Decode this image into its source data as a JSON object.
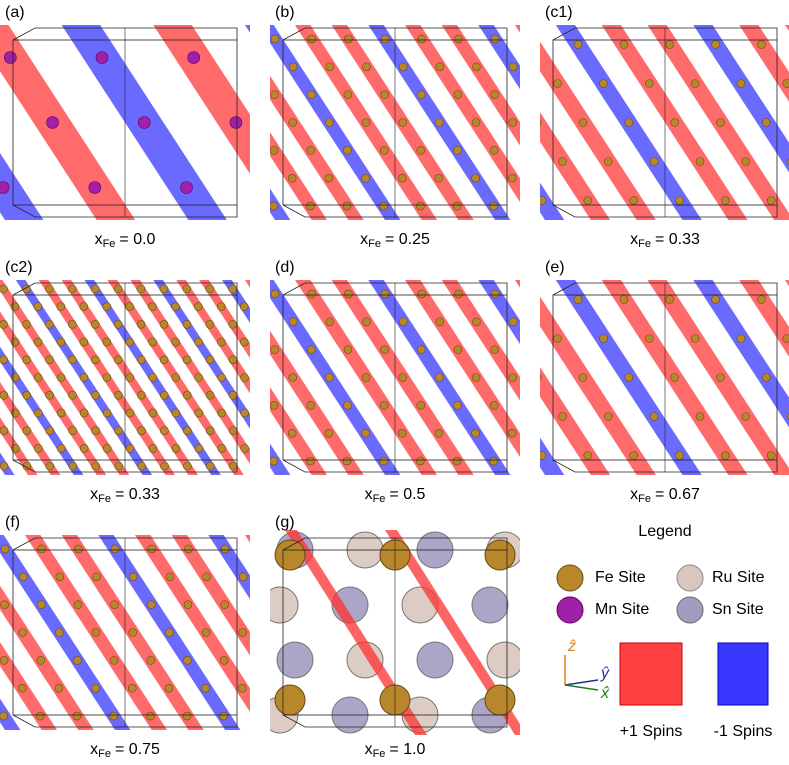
{
  "panels": [
    {
      "label": "(a)",
      "caption": {
        "symbol": "x",
        "subscript": "Fe",
        "text": "= 0.0"
      }
    },
    {
      "label": "(b)",
      "caption": {
        "symbol": "x",
        "subscript": "Fe",
        "text": "= 0.25"
      }
    },
    {
      "label": "(c1)",
      "caption": {
        "symbol": "x",
        "subscript": "Fe",
        "text": "= 0.33"
      }
    },
    {
      "label": "(c2)",
      "caption": {
        "symbol": "x",
        "subscript": "Fe",
        "text": "= 0.33"
      }
    },
    {
      "label": "(d)",
      "caption": {
        "symbol": "x",
        "subscript": "Fe",
        "text": "= 0.5"
      }
    },
    {
      "label": "(e)",
      "caption": {
        "symbol": "x",
        "subscript": "Fe",
        "text": "= 0.67"
      }
    },
    {
      "label": "(f)",
      "caption": {
        "symbol": "x",
        "subscript": "Fe",
        "text": "= 0.75"
      }
    },
    {
      "label": "(g)",
      "caption": {
        "symbol": "x",
        "subscript": "Fe",
        "text": "= 1.0"
      }
    }
  ],
  "legend": {
    "title": "Legend",
    "sites": [
      "Fe Site",
      "Ru Site",
      "Mn Site",
      "Sn Site"
    ],
    "axes": [
      "ẑ",
      "ŷ",
      "x̂"
    ],
    "spins": [
      "+1 Spins",
      "-1 Spins"
    ]
  }
}
